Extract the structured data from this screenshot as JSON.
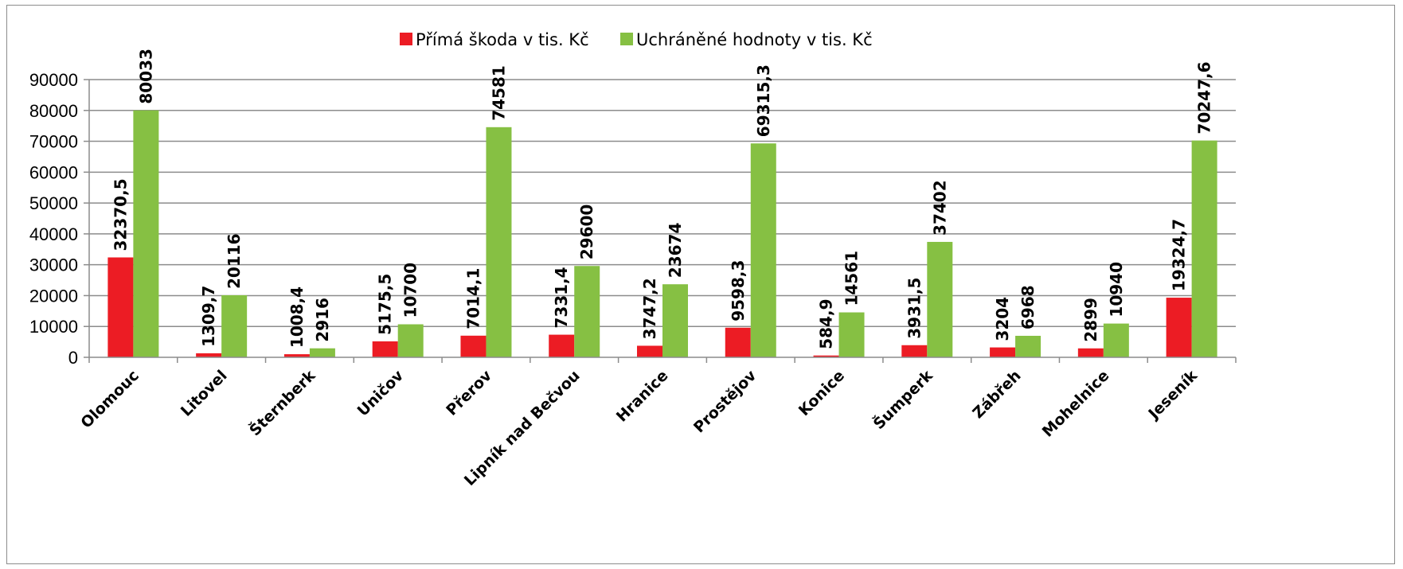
{
  "chart_data": {
    "type": "bar",
    "categories": [
      "Olomouc",
      "Litovel",
      "Šternberk",
      "Uničov",
      "Přerov",
      "Lipník nad Bečvou",
      "Hranice",
      "Prostějov",
      "Konice",
      "Šumperk",
      "Zábřeh",
      "Mohelnice",
      "Jeseník"
    ],
    "series": [
      {
        "name": "Přímá škoda v tis. Kč",
        "color": "#ec1c24",
        "values": [
          32370.5,
          1309.7,
          1008.4,
          5175.5,
          7014.1,
          7331.4,
          3747.2,
          9598.3,
          584.9,
          3931.5,
          3204,
          2899,
          19324.7
        ],
        "labels": [
          "32370,5",
          "1309,7",
          "1008,4",
          "5175,5",
          "7014,1",
          "7331,4",
          "3747,2",
          "9598,3",
          "584,9",
          "3931,5",
          "3204",
          "2899",
          "19324,7"
        ]
      },
      {
        "name": "Uchráněné hodnoty v tis. Kč",
        "color": "#86c043",
        "values": [
          80033,
          20116,
          2916,
          10700,
          74581,
          29600,
          23674,
          69315.3,
          14561,
          37402,
          6968,
          10940,
          70247.6
        ],
        "labels": [
          "80033",
          "20116",
          "2916",
          "10700",
          "74581",
          "29600",
          "23674",
          "69315,3",
          "14561",
          "37402",
          "6968",
          "10940",
          "70247,6"
        ]
      }
    ],
    "ylim": [
      0,
      90000
    ],
    "yticks": [
      0,
      10000,
      20000,
      30000,
      40000,
      50000,
      60000,
      70000,
      80000,
      90000
    ],
    "grid": true,
    "legend": "top"
  }
}
